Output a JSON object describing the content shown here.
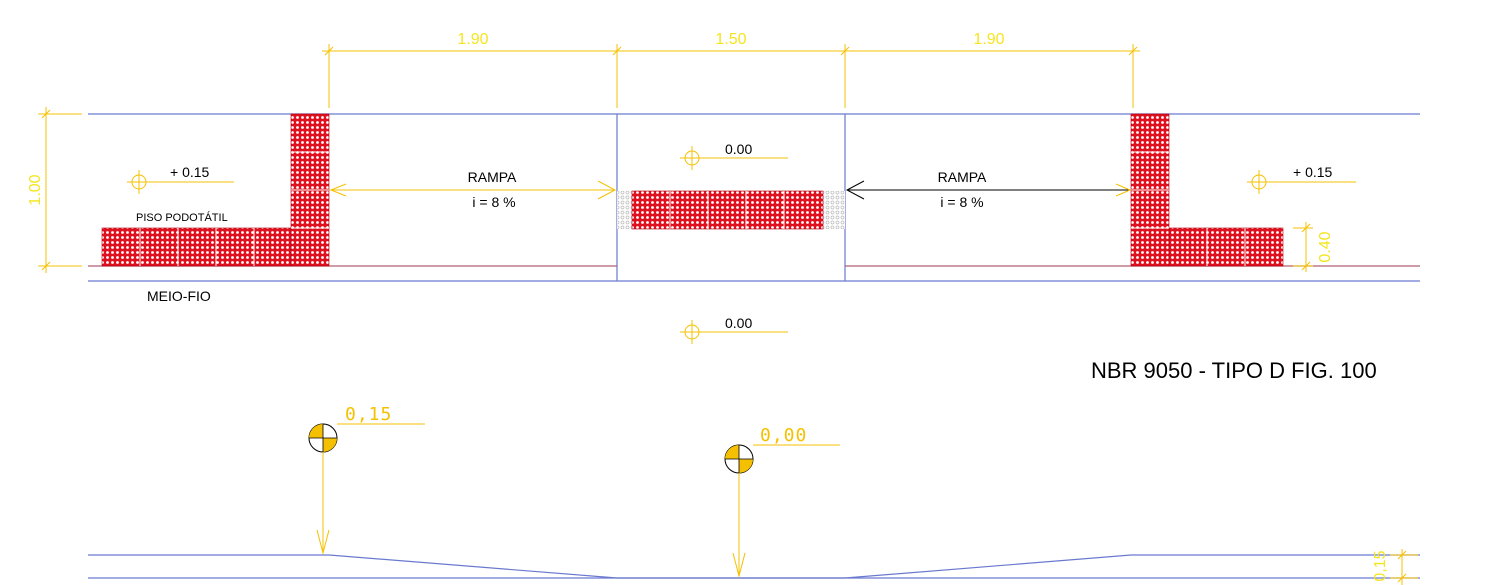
{
  "plan": {
    "dimensions": {
      "top_left": "1.90",
      "top_center": "1.50",
      "top_right": "1.90",
      "left_height": "1.00",
      "right_height": "0.40"
    },
    "levels": {
      "left": "+ 0.15",
      "center": "0.00",
      "right": "+ 0.15",
      "street": "0.00"
    },
    "ramp_left": {
      "label": "RAMPA",
      "slope": "i = 8 %"
    },
    "ramp_right": {
      "label": "RAMPA",
      "slope": "i = 8 %"
    },
    "tactile_label": "PISO PODOTÁTIL",
    "curb_label": "MEIO-FIO"
  },
  "standard": "NBR 9050 - TIPO D FIG. 100",
  "section": {
    "level_left": "0,15",
    "level_center": "0,00",
    "right_height": "0,15"
  },
  "colors": {
    "dimension": "#f5e51e",
    "tactile": "#e0101e",
    "outline": "#6a79d0"
  }
}
